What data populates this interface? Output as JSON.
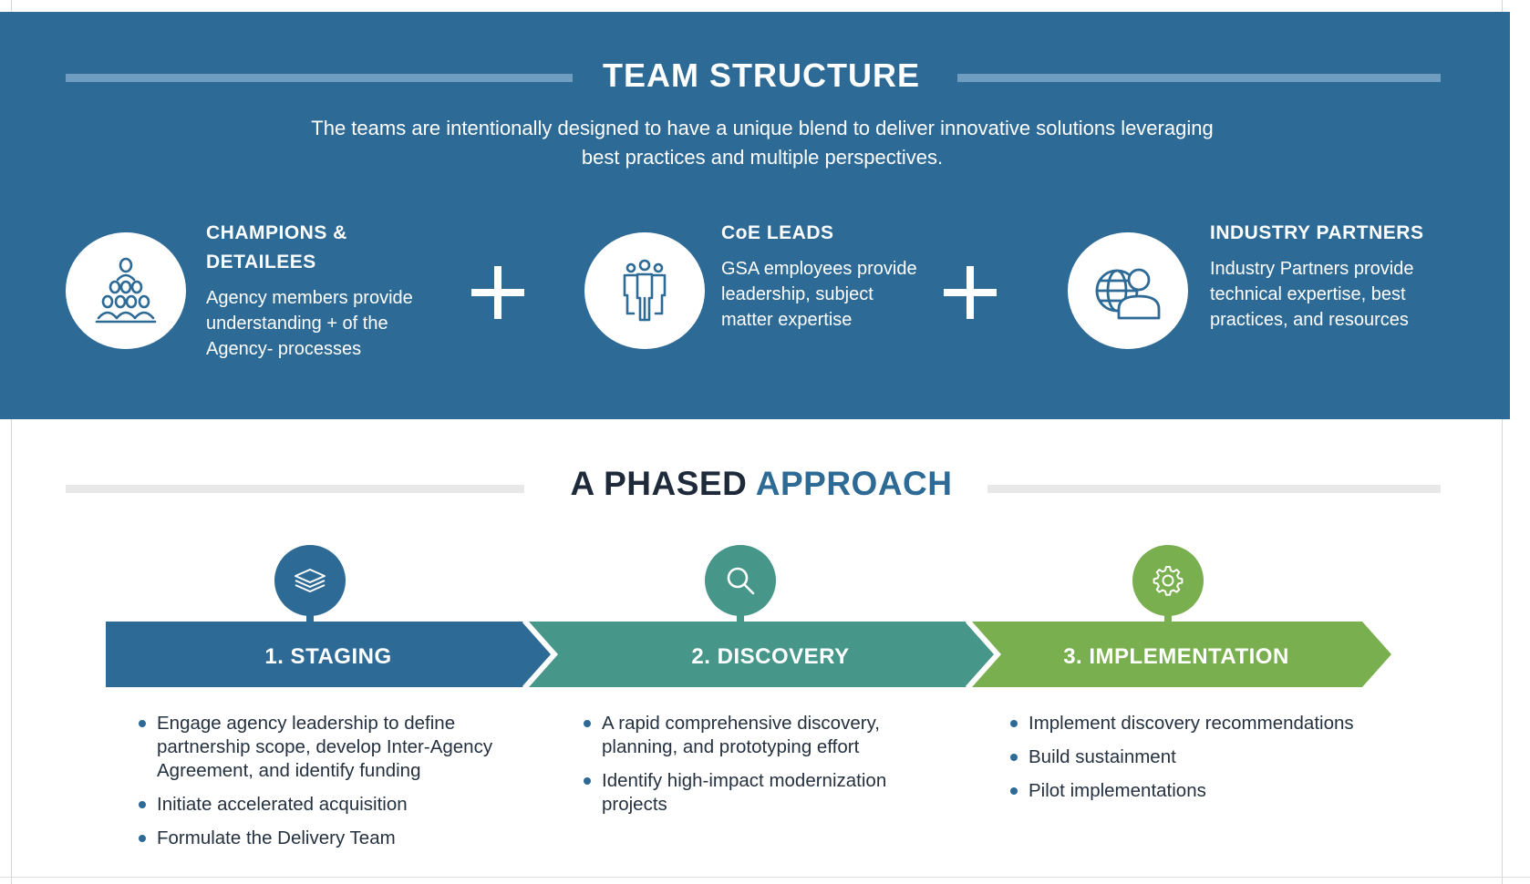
{
  "team": {
    "title": "TEAM STRUCTURE",
    "subtitle_line1": "The teams are intentionally designed to have a unique blend to deliver innovative solutions leveraging",
    "subtitle_line2": "best practices and multiple perspectives.",
    "roles": [
      {
        "icon": "group-people-icon",
        "heading_line1": "CHAMPIONS &",
        "heading_line2": "DETAILEES",
        "desc_line1": "Agency members provide",
        "desc_line2": "understanding + of the",
        "desc_line3": "Agency- processes"
      },
      {
        "icon": "team-leads-icon",
        "heading_line1": "CoE LEADS",
        "desc_line1": "GSA employees provide",
        "desc_line2": "leadership, subject",
        "desc_line3": "matter expertise"
      },
      {
        "icon": "globe-person-icon",
        "heading_line1": "INDUSTRY PARTNERS",
        "desc_line1": "Industry Partners provide",
        "desc_line2": "technical expertise, best",
        "desc_line3": "practices, and resources"
      }
    ]
  },
  "phased": {
    "title_part1": "A PHASED",
    "title_part2": "APPROACH",
    "phases": [
      {
        "icon": "layers-icon",
        "label": "1.  STAGING",
        "color": "#2d6a96",
        "bullets": [
          "Engage agency leadership to define partnership scope, develop Inter-Agency Agreement, and identify funding",
          "Initiate accelerated acquisition",
          "Formulate the Delivery Team"
        ]
      },
      {
        "icon": "search-icon",
        "label": "2.  DISCOVERY",
        "color": "#47968a",
        "bullets": [
          "A rapid comprehensive discovery, planning, and prototyping effort",
          "Identify high-impact modernization projects"
        ]
      },
      {
        "icon": "gear-icon",
        "label": "3.  IMPLEMENTATION",
        "color": "#7aaf4f",
        "bullets": [
          "Implement discovery recommendations",
          "Build sustainment",
          "Pilot implementations"
        ]
      }
    ]
  },
  "colors": {
    "team_band": "#2d6a96",
    "staging": "#2d6a96",
    "discovery": "#47968a",
    "implementation": "#7aaf4f",
    "heading_dark": "#1e2a3a"
  }
}
